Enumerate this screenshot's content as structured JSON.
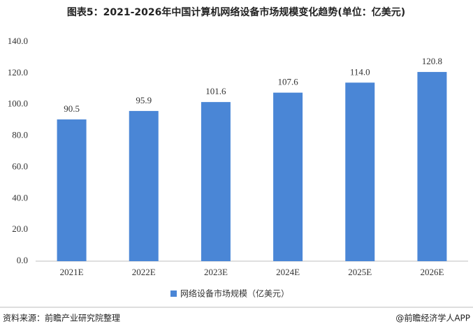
{
  "chart_data": {
    "type": "bar",
    "title": "图表5：2021-2026年中国计算机网络设备市场规模变化趋势(单位：亿美元)",
    "categories": [
      "2021E",
      "2022E",
      "2023E",
      "2024E",
      "2025E",
      "2026E"
    ],
    "series": [
      {
        "name": "网络设备市场规模（亿美元）",
        "color": "#4a86d6",
        "values": [
          90.5,
          95.9,
          101.6,
          107.6,
          114.0,
          120.8
        ],
        "value_labels": [
          "90.5",
          "95.9",
          "101.6",
          "107.6",
          "114.0",
          "120.8"
        ]
      }
    ],
    "ylim": [
      0,
      140
    ],
    "yticks": [
      {
        "value": 0,
        "label": "0.0"
      },
      {
        "value": 20,
        "label": "20.0"
      },
      {
        "value": 40,
        "label": "40.0"
      },
      {
        "value": 60,
        "label": "60.0"
      },
      {
        "value": 80,
        "label": "80.0"
      },
      {
        "value": 100,
        "label": "100.0"
      },
      {
        "value": 120,
        "label": "120.0"
      },
      {
        "value": 140,
        "label": "140.0"
      }
    ],
    "grid": false,
    "legend": "bottom"
  },
  "footer": {
    "source": "资料来源：前瞻产业研究院整理",
    "credit": "@前瞻经济学人APP"
  }
}
